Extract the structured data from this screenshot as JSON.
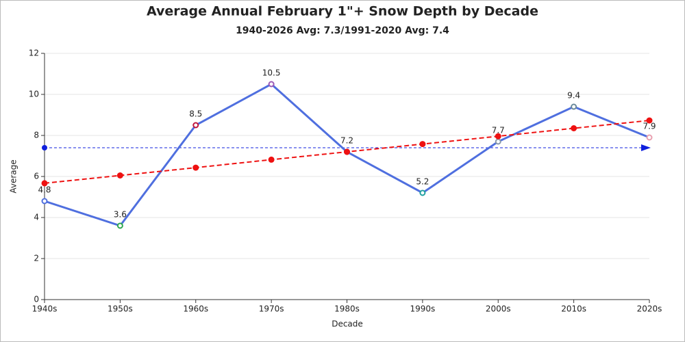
{
  "chart_data": {
    "type": "line",
    "title": "Average Annual February 1\"+ Snow Depth by Decade",
    "subtitle": "1940-2026 Avg: 7.3/1991-2020 Avg: 7.4",
    "x_label": "Decade",
    "y_label": "Average",
    "categories": [
      "1940s",
      "1950s",
      "1960s",
      "1970s",
      "1980s",
      "1990s",
      "2000s",
      "2010s",
      "2020s"
    ],
    "series": [
      {
        "color": "#4f6fdf",
        "values": [
          4.8,
          3.6,
          8.5,
          10.5,
          7.2,
          5.2,
          7.7,
          9.4,
          7.9
        ],
        "point_colors": [
          "#4f6fdf",
          "#2ea84f",
          "#c0143c",
          "#9b59b6",
          "#e0202a",
          "#20a0a0",
          "#8899aa",
          "#6a8a9a",
          "#e8a0b0"
        ],
        "data_labels": true
      },
      {
        "color": "#ee1111",
        "dashed": true,
        "values": [
          5.67,
          6.05,
          6.43,
          6.82,
          7.2,
          7.58,
          7.96,
          8.35,
          8.73
        ]
      }
    ],
    "average_line": {
      "value": 7.4,
      "color": "#1020dd"
    },
    "ylim": [
      0,
      12
    ],
    "yticks": [
      0,
      2,
      4,
      6,
      8,
      10,
      12
    ],
    "grid": true
  }
}
